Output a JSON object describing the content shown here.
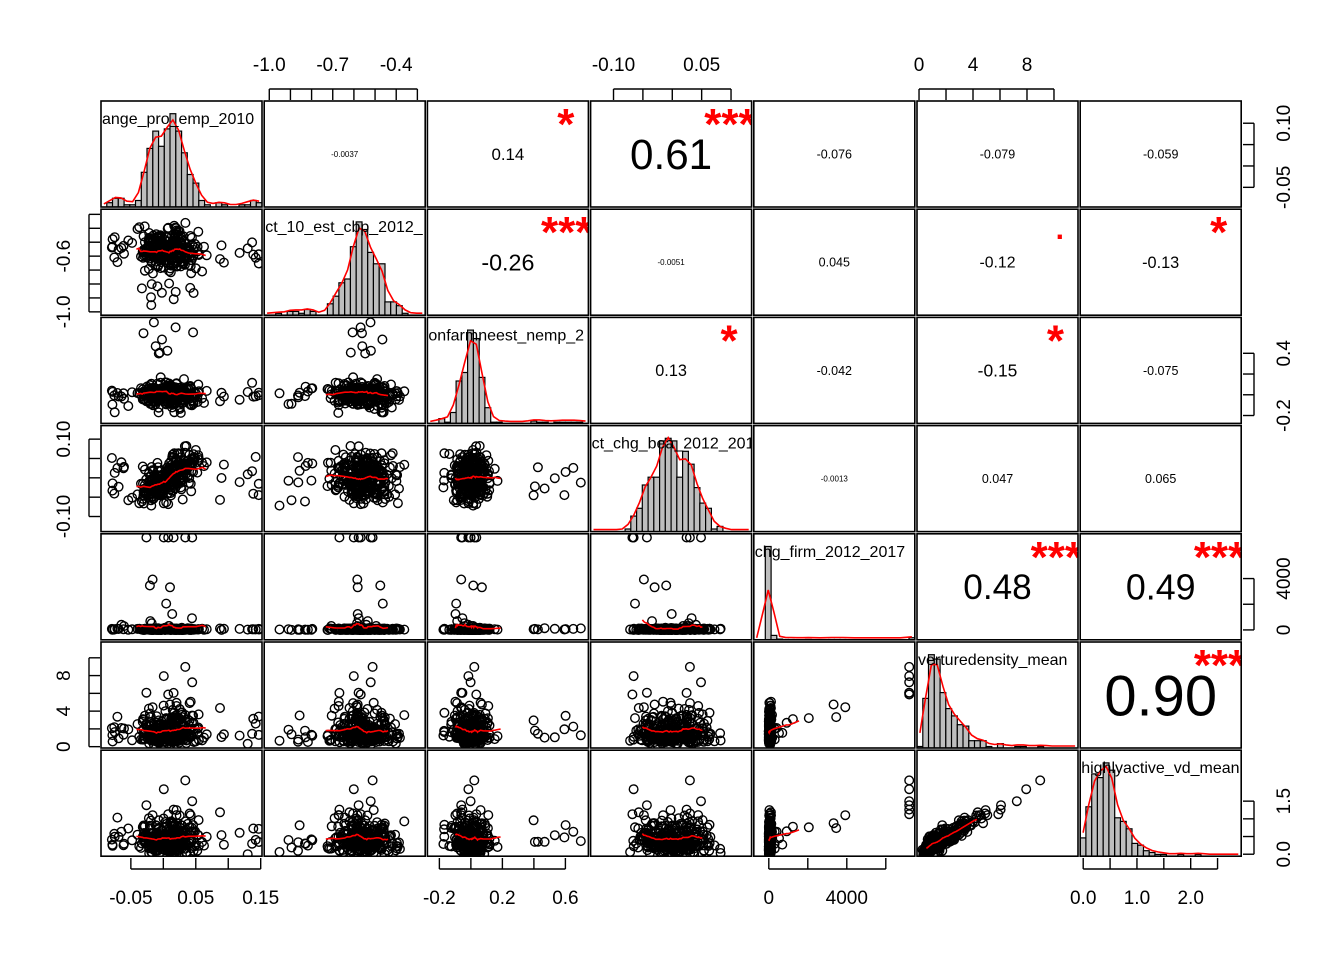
{
  "chart_data": {
    "type": "scatter-matrix",
    "title": "",
    "variables": [
      {
        "label": "ange_pro_emp_2010",
        "range": [
          -0.096,
          0.152
        ]
      },
      {
        "label": "ct_10_est_cbp_2012_",
        "range": [
          -1.024,
          -0.263
        ]
      },
      {
        "label": "onfarmneest_nemp_2",
        "range": [
          -0.276,
          0.746
        ]
      },
      {
        "label": "ct_chg_bea_2012_201",
        "range": [
          -0.139,
          0.135
        ]
      },
      {
        "label": "chg_firm_2012_2017",
        "range": [
          -769,
          7487
        ]
      },
      {
        "label": "verturedensity_mean",
        "range": [
          -0.15,
          11.78
        ]
      },
      {
        "label": "highlyactive_vd_mean",
        "range": [
          -0.056,
          2.94
        ]
      }
    ],
    "correlations": [
      {
        "i": 0,
        "j": 1,
        "r": "-0.0037",
        "stars": ""
      },
      {
        "i": 0,
        "j": 2,
        "r": "0.14",
        "stars": "*"
      },
      {
        "i": 0,
        "j": 3,
        "r": "0.61",
        "stars": "***"
      },
      {
        "i": 0,
        "j": 4,
        "r": "-0.076",
        "stars": ""
      },
      {
        "i": 0,
        "j": 5,
        "r": "-0.079",
        "stars": ""
      },
      {
        "i": 0,
        "j": 6,
        "r": "-0.059",
        "stars": ""
      },
      {
        "i": 1,
        "j": 2,
        "r": "-0.26",
        "stars": "***"
      },
      {
        "i": 1,
        "j": 3,
        "r": "-0.0051",
        "stars": ""
      },
      {
        "i": 1,
        "j": 4,
        "r": "0.045",
        "stars": ""
      },
      {
        "i": 1,
        "j": 5,
        "r": "-0.12",
        "stars": "."
      },
      {
        "i": 1,
        "j": 6,
        "r": "-0.13",
        "stars": "*"
      },
      {
        "i": 2,
        "j": 3,
        "r": "0.13",
        "stars": "*"
      },
      {
        "i": 2,
        "j": 4,
        "r": "-0.042",
        "stars": ""
      },
      {
        "i": 2,
        "j": 5,
        "r": "-0.15",
        "stars": "*"
      },
      {
        "i": 2,
        "j": 6,
        "r": "-0.075",
        "stars": ""
      },
      {
        "i": 3,
        "j": 4,
        "r": "-0.0013",
        "stars": ""
      },
      {
        "i": 3,
        "j": 5,
        "r": "0.047",
        "stars": ""
      },
      {
        "i": 3,
        "j": 6,
        "r": "0.065",
        "stars": ""
      },
      {
        "i": 4,
        "j": 5,
        "r": "0.48",
        "stars": "***"
      },
      {
        "i": 4,
        "j": 6,
        "r": "0.49",
        "stars": "***"
      },
      {
        "i": 5,
        "j": 6,
        "r": "0.90",
        "stars": "***"
      }
    ],
    "axes": [
      {
        "side": "top",
        "var": 1,
        "ticks": [
          -1.0,
          -0.9,
          -0.8,
          -0.7,
          -0.6,
          -0.5,
          -0.4,
          -0.3
        ],
        "labels": [
          "-1.0",
          "-0.7",
          "-0.4"
        ]
      },
      {
        "side": "top",
        "var": 3,
        "ticks": [
          -0.1,
          -0.05,
          0,
          0.05,
          0.1
        ],
        "labels": [
          "-0.10",
          "0.05"
        ]
      },
      {
        "side": "top",
        "var": 5,
        "ticks": [
          0,
          2,
          4,
          6,
          8,
          10
        ],
        "labels": [
          "0",
          "4",
          "8"
        ]
      },
      {
        "side": "bottom",
        "var": 0,
        "ticks": [
          -0.05,
          0,
          0.05,
          0.1,
          0.15
        ],
        "labels": [
          "-0.05",
          "0.05",
          "0.15"
        ]
      },
      {
        "side": "bottom",
        "var": 2,
        "ticks": [
          -0.2,
          0,
          0.2,
          0.4,
          0.6
        ],
        "labels": [
          "-0.2",
          "0.2",
          "0.6"
        ]
      },
      {
        "side": "bottom",
        "var": 4,
        "ticks": [
          0,
          2000,
          4000,
          6000
        ],
        "labels": [
          "0",
          "4000"
        ]
      },
      {
        "side": "bottom",
        "var": 6,
        "ticks": [
          0,
          0.5,
          1.0,
          1.5,
          2.0,
          2.5
        ],
        "labels": [
          "0.0",
          "1.0",
          "2.0"
        ]
      },
      {
        "side": "left",
        "var": 1,
        "ticks": [
          -1.0,
          -0.9,
          -0.8,
          -0.7,
          -0.6,
          -0.5,
          -0.4,
          -0.3
        ],
        "labels": [
          "-0.6",
          "-1.0"
        ]
      },
      {
        "side": "left",
        "var": 3,
        "ticks": [
          -0.1,
          -0.05,
          0,
          0.05,
          0.1
        ],
        "labels": [
          "0.10",
          "-0.10"
        ]
      },
      {
        "side": "left",
        "var": 5,
        "ticks": [
          0,
          2,
          4,
          6,
          8,
          10
        ],
        "labels": [
          "8",
          "4",
          "0"
        ]
      },
      {
        "side": "right",
        "var": 0,
        "ticks": [
          -0.05,
          0,
          0.05,
          0.1
        ],
        "labels": [
          "0.10",
          "-0.05"
        ]
      },
      {
        "side": "right",
        "var": 2,
        "ticks": [
          -0.2,
          0,
          0.2,
          0.4
        ],
        "labels": [
          "0.4",
          "-0.2"
        ]
      },
      {
        "side": "right",
        "var": 4,
        "ticks": [
          0,
          2000,
          4000
        ],
        "labels": [
          "4000",
          "0"
        ]
      },
      {
        "side": "right",
        "var": 6,
        "ticks": [
          0,
          0.5,
          1.0,
          1.5
        ],
        "labels": [
          "1.5",
          "0.0"
        ]
      }
    ],
    "colors": {
      "smooth": "#ff0000",
      "stars": "#ff0000",
      "hist_fill": "#bebebe",
      "points": "#000000"
    }
  }
}
